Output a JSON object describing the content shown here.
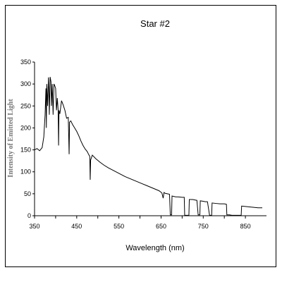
{
  "chart_data": {
    "type": "line",
    "title": "Star #2",
    "xlabel": "Wavelength (nm)",
    "ylabel": "Intensity of Emitted Light",
    "xlim": [
      350,
      900
    ],
    "ylim": [
      0,
      350
    ],
    "xticks": [
      350,
      450,
      550,
      650,
      750,
      850
    ],
    "yticks": [
      0,
      50,
      100,
      150,
      200,
      250,
      300,
      350
    ],
    "grid": false,
    "legend": "none",
    "series": [
      {
        "color": "#000000",
        "points": [
          [
            350,
            150
          ],
          [
            356,
            153
          ],
          [
            362,
            148
          ],
          [
            368,
            155
          ],
          [
            372,
            180
          ],
          [
            375,
            230
          ],
          [
            377,
            290
          ],
          [
            378,
            200
          ],
          [
            379,
            300
          ],
          [
            381,
            250
          ],
          [
            383,
            315
          ],
          [
            384,
            290
          ],
          [
            385,
            230
          ],
          [
            387,
            316
          ],
          [
            389,
            305
          ],
          [
            390,
            250
          ],
          [
            392,
            300
          ],
          [
            394,
            230
          ],
          [
            396,
            300
          ],
          [
            398,
            296
          ],
          [
            400,
            290
          ],
          [
            402,
            240
          ],
          [
            404,
            268
          ],
          [
            406,
            240
          ],
          [
            407,
            160
          ],
          [
            408,
            240
          ],
          [
            410,
            232
          ],
          [
            414,
            262
          ],
          [
            418,
            252
          ],
          [
            422,
            240
          ],
          [
            426,
            222
          ],
          [
            430,
            224
          ],
          [
            432,
            140
          ],
          [
            433,
            213
          ],
          [
            436,
            216
          ],
          [
            440,
            208
          ],
          [
            445,
            200
          ],
          [
            450,
            192
          ],
          [
            455,
            182
          ],
          [
            460,
            170
          ],
          [
            465,
            160
          ],
          [
            470,
            152
          ],
          [
            475,
            146
          ],
          [
            478,
            140
          ],
          [
            481,
            135
          ],
          [
            482,
            82
          ],
          [
            483,
            127
          ],
          [
            487,
            138
          ],
          [
            495,
            130
          ],
          [
            505,
            122
          ],
          [
            515,
            115
          ],
          [
            525,
            109
          ],
          [
            535,
            104
          ],
          [
            545,
            99
          ],
          [
            555,
            94
          ],
          [
            565,
            89
          ],
          [
            575,
            85
          ],
          [
            585,
            81
          ],
          [
            595,
            77
          ],
          [
            605,
            73
          ],
          [
            615,
            69
          ],
          [
            625,
            65
          ],
          [
            635,
            61
          ],
          [
            645,
            57
          ],
          [
            652,
            52
          ],
          [
            655,
            40
          ],
          [
            657,
            53
          ],
          [
            660,
            51
          ],
          [
            665,
            50
          ],
          [
            670,
            49
          ],
          [
            672,
            2
          ],
          [
            675,
            2
          ],
          [
            676,
            45
          ],
          [
            680,
            44
          ],
          [
            685,
            43
          ],
          [
            690,
            43
          ],
          [
            700,
            42
          ],
          [
            705,
            42
          ],
          [
            706,
            1
          ],
          [
            710,
            1
          ],
          [
            716,
            1
          ],
          [
            717,
            37
          ],
          [
            725,
            37
          ],
          [
            730,
            36
          ],
          [
            735,
            35
          ],
          [
            738,
            2
          ],
          [
            742,
            2
          ],
          [
            743,
            34
          ],
          [
            750,
            33
          ],
          [
            755,
            32
          ],
          [
            760,
            32
          ],
          [
            765,
            1
          ],
          [
            770,
            1
          ],
          [
            771,
            29
          ],
          [
            780,
            28
          ],
          [
            790,
            27
          ],
          [
            800,
            27
          ],
          [
            805,
            26
          ],
          [
            806,
            2
          ],
          [
            812,
            2
          ],
          [
            818,
            1
          ],
          [
            835,
            1
          ],
          [
            840,
            1
          ],
          [
            841,
            22
          ],
          [
            850,
            21
          ],
          [
            860,
            20
          ],
          [
            870,
            19
          ],
          [
            880,
            18
          ],
          [
            890,
            18
          ]
        ]
      }
    ]
  }
}
